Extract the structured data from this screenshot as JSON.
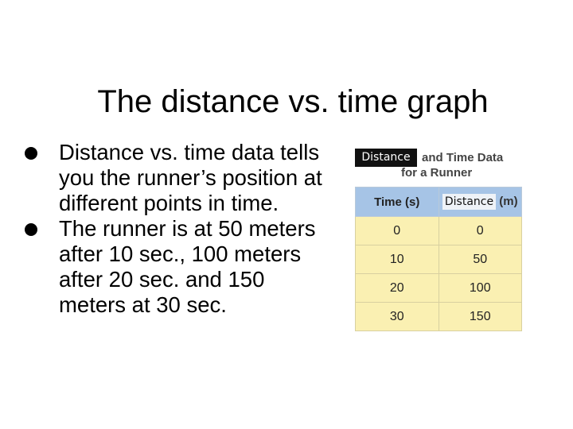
{
  "slide": {
    "title": "The distance vs. time graph",
    "bullets": [
      {
        "text": "Distance vs. time data tells you the runner’s position at different points in time."
      },
      {
        "text": "The runner is at 50 meters after 10 sec., 100 meters after 20 sec. and 150 meters at 30 sec."
      }
    ]
  },
  "figure": {
    "caption_overlay": "Distance",
    "caption_rest": "and Time Data",
    "caption_sub": "for a Runner",
    "headers": [
      "Time (s)",
      "Distance",
      "(m)"
    ],
    "rows": [
      [
        "0",
        "0"
      ],
      [
        "10",
        "50"
      ],
      [
        "20",
        "100"
      ],
      [
        "30",
        "150"
      ]
    ],
    "colors": {
      "header_bg": "#a6c4e6",
      "cell_bg": "#faf0b2",
      "overlay_bg": "#111111"
    }
  }
}
